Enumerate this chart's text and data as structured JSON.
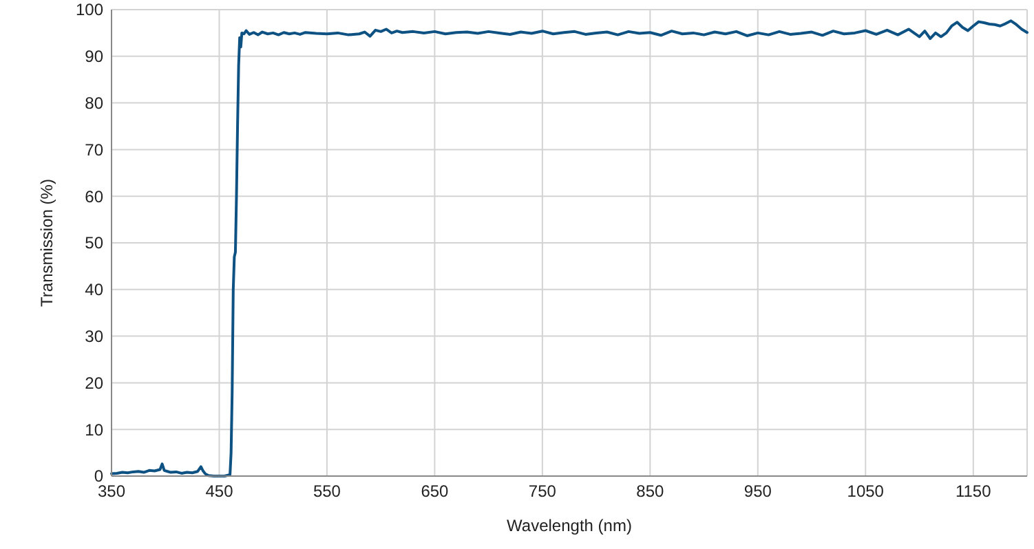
{
  "chart_data": {
    "type": "line",
    "xlabel": "Wavelength (nm)",
    "ylabel": "Transmission (%)",
    "xlim": [
      350,
      1200
    ],
    "ylim": [
      0,
      100
    ],
    "xticks": [
      350,
      450,
      550,
      650,
      750,
      850,
      950,
      1050,
      1150
    ],
    "yticks": [
      0,
      10,
      20,
      30,
      40,
      50,
      60,
      70,
      80,
      90,
      100
    ],
    "grid": true,
    "marker": "none",
    "line_style": "solid",
    "series": [
      {
        "color": "#0e5183",
        "x": [
          350,
          355,
          360,
          365,
          370,
          375,
          380,
          385,
          390,
          395,
          397,
          399,
          402,
          405,
          410,
          415,
          420,
          425,
          430,
          433,
          435,
          437,
          440,
          445,
          450,
          455,
          460,
          461,
          462,
          463,
          464,
          465,
          466,
          467,
          468,
          469,
          470,
          471,
          473,
          475,
          478,
          482,
          486,
          490,
          495,
          500,
          505,
          510,
          515,
          520,
          525,
          530,
          540,
          550,
          560,
          570,
          580,
          585,
          590,
          595,
          600,
          605,
          610,
          615,
          620,
          630,
          640,
          650,
          660,
          670,
          680,
          690,
          700,
          710,
          720,
          730,
          740,
          750,
          760,
          770,
          780,
          790,
          800,
          810,
          820,
          830,
          840,
          850,
          860,
          870,
          880,
          890,
          900,
          910,
          920,
          930,
          940,
          950,
          960,
          970,
          980,
          990,
          1000,
          1010,
          1020,
          1030,
          1040,
          1050,
          1060,
          1070,
          1080,
          1090,
          1100,
          1105,
          1110,
          1115,
          1120,
          1125,
          1130,
          1135,
          1140,
          1145,
          1150,
          1155,
          1160,
          1165,
          1170,
          1175,
          1180,
          1185,
          1190,
          1195,
          1200
        ],
        "values": [
          0.5,
          0.6,
          0.8,
          0.7,
          0.9,
          1.0,
          0.8,
          1.2,
          1.1,
          1.4,
          2.6,
          1.2,
          1.0,
          0.8,
          0.9,
          0.6,
          0.8,
          0.7,
          1.0,
          2.0,
          1.1,
          0.5,
          0.1,
          0,
          0,
          0,
          0.3,
          5,
          18,
          40,
          47,
          48,
          60,
          75,
          88,
          94,
          92,
          95,
          94.8,
          95.5,
          94.7,
          95.1,
          94.6,
          95.2,
          94.8,
          95.0,
          94.6,
          95.1,
          94.8,
          95.0,
          94.7,
          95.1,
          94.9,
          94.8,
          95.0,
          94.6,
          94.8,
          95.2,
          94.3,
          95.6,
          95.3,
          95.8,
          95.0,
          95.4,
          95.1,
          95.3,
          95.0,
          95.3,
          94.8,
          95.1,
          95.2,
          94.9,
          95.3,
          95.0,
          94.7,
          95.2,
          94.9,
          95.4,
          94.8,
          95.1,
          95.3,
          94.7,
          95.0,
          95.2,
          94.6,
          95.3,
          94.9,
          95.1,
          94.5,
          95.4,
          94.8,
          95.0,
          94.6,
          95.2,
          94.8,
          95.3,
          94.4,
          95.0,
          94.6,
          95.3,
          94.7,
          94.9,
          95.2,
          94.5,
          95.4,
          94.8,
          95.0,
          95.5,
          94.7,
          95.6,
          94.6,
          95.8,
          94.2,
          95.4,
          93.8,
          95.0,
          94.2,
          95.0,
          96.5,
          97.3,
          96.2,
          95.5,
          96.5,
          97.4,
          97.2,
          96.9,
          96.8,
          96.5,
          97.0,
          97.6,
          96.8,
          95.8,
          95.1
        ]
      }
    ]
  }
}
